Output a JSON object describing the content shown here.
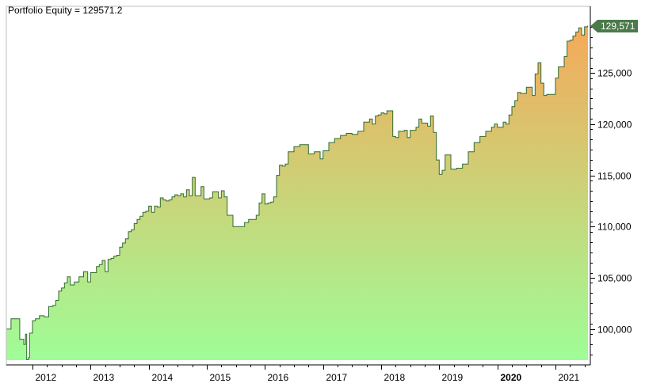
{
  "chart_data": {
    "type": "area",
    "title": "Portfolio Equity = 129571.2",
    "xlabel": "",
    "ylabel": "",
    "ylim": [
      96500,
      131500
    ],
    "xlim": [
      2011.55,
      2021.6
    ],
    "last_value_label": "129,571",
    "last_value": 129571.2,
    "colors": {
      "fill_bottom": "#9ffd97",
      "fill_top": "#f5a95a",
      "line": "#2f6b2f",
      "value_tag": "#4b7a4b",
      "axis": "#000000"
    },
    "x_ticks": [
      {
        "x": 2012,
        "label": "2012",
        "bold": false
      },
      {
        "x": 2013,
        "label": "2013",
        "bold": false
      },
      {
        "x": 2014,
        "label": "2014",
        "bold": false
      },
      {
        "x": 2015,
        "label": "2015",
        "bold": false
      },
      {
        "x": 2016,
        "label": "2016",
        "bold": false
      },
      {
        "x": 2017,
        "label": "2017",
        "bold": false
      },
      {
        "x": 2018,
        "label": "2018",
        "bold": false
      },
      {
        "x": 2019,
        "label": "2019",
        "bold": false
      },
      {
        "x": 2020,
        "label": "2020",
        "bold": true
      },
      {
        "x": 2021,
        "label": "2021",
        "bold": false
      }
    ],
    "y_ticks": [
      {
        "y": 100000,
        "label": "100,000"
      },
      {
        "y": 105000,
        "label": "105,000"
      },
      {
        "y": 110000,
        "label": "110,000"
      },
      {
        "y": 115000,
        "label": "115,000"
      },
      {
        "y": 120000,
        "label": "120,000"
      },
      {
        "y": 125000,
        "label": "125,000"
      }
    ],
    "series": [
      {
        "x": [
          2011.55,
          2011.62,
          2011.63,
          2011.75,
          2011.78,
          2011.82,
          2011.85,
          2011.88,
          2011.9,
          2011.93,
          2011.95,
          2012.0,
          2012.05,
          2012.12,
          2012.2,
          2012.28,
          2012.35,
          2012.4,
          2012.45,
          2012.5,
          2012.55,
          2012.6,
          2012.65,
          2012.72,
          2012.8,
          2012.88,
          2012.95,
          2013.0,
          2013.05,
          2013.1,
          2013.15,
          2013.2,
          2013.25,
          2013.3,
          2013.35,
          2013.4,
          2013.45,
          2013.5,
          2013.55,
          2013.6,
          2013.65,
          2013.7,
          2013.75,
          2013.8,
          2013.85,
          2013.9,
          2013.95,
          2014.0,
          2014.05,
          2014.1,
          2014.15,
          2014.2,
          2014.25,
          2014.3,
          2014.35,
          2014.4,
          2014.45,
          2014.5,
          2014.55,
          2014.6,
          2014.65,
          2014.7,
          2014.75,
          2014.8,
          2014.85,
          2014.9,
          2014.95,
          2015.0,
          2015.05,
          2015.1,
          2015.15,
          2015.2,
          2015.25,
          2015.3,
          2015.35,
          2015.45,
          2015.55,
          2015.65,
          2015.72,
          2015.8,
          2015.85,
          2015.9,
          2015.95,
          2016.0,
          2016.05,
          2016.1,
          2016.15,
          2016.2,
          2016.25,
          2016.3,
          2016.35,
          2016.4,
          2016.5,
          2016.6,
          2016.75,
          2016.85,
          2016.95,
          2017.0,
          2017.1,
          2017.2,
          2017.3,
          2017.4,
          2017.5,
          2017.6,
          2017.7,
          2017.8,
          2017.85,
          2017.9,
          2017.95,
          2018.0,
          2018.05,
          2018.1,
          2018.2,
          2018.25,
          2018.3,
          2018.4,
          2018.45,
          2018.5,
          2018.6,
          2018.65,
          2018.7,
          2018.8,
          2018.85,
          2018.9,
          2018.95,
          2019.0,
          2019.05,
          2019.1,
          2019.2,
          2019.3,
          2019.4,
          2019.5,
          2019.6,
          2019.7,
          2019.8,
          2019.9,
          2019.95,
          2020.0,
          2020.05,
          2020.1,
          2020.15,
          2020.2,
          2020.25,
          2020.3,
          2020.35,
          2020.4,
          2020.5,
          2020.6,
          2020.65,
          2020.7,
          2020.75,
          2020.8,
          2020.85,
          2020.9,
          2020.95,
          2021.0,
          2021.05,
          2021.1,
          2021.15,
          2021.2,
          2021.25,
          2021.3,
          2021.35,
          2021.4,
          2021.45,
          2021.5,
          2021.55
        ],
        "y": [
          100000,
          100000,
          101000,
          101000,
          99000,
          99000,
          98500,
          99500,
          97000,
          97200,
          99600,
          100800,
          101000,
          101300,
          101200,
          102200,
          102300,
          102800,
          103700,
          104000,
          104500,
          105100,
          104300,
          104600,
          105100,
          105600,
          104600,
          105500,
          105500,
          106100,
          106300,
          106700,
          105600,
          106800,
          106900,
          107100,
          107200,
          108000,
          108400,
          108800,
          109500,
          109700,
          110300,
          110700,
          111000,
          111400,
          111500,
          112000,
          111400,
          112000,
          111900,
          112800,
          112600,
          112500,
          112600,
          112900,
          113100,
          113000,
          113200,
          112900,
          113600,
          113000,
          114800,
          113000,
          113000,
          113900,
          112700,
          112700,
          112800,
          113400,
          113400,
          112800,
          113500,
          112900,
          111100,
          110000,
          110000,
          110400,
          110700,
          110700,
          111100,
          112300,
          113200,
          112200,
          112300,
          112400,
          112900,
          115000,
          116000,
          115900,
          116100,
          117300,
          117800,
          118000,
          117100,
          117300,
          116600,
          117400,
          118200,
          118600,
          118900,
          119100,
          119000,
          119300,
          120200,
          120500,
          120000,
          120800,
          120900,
          121100,
          121000,
          121300,
          118800,
          118700,
          119300,
          119400,
          118700,
          119400,
          119700,
          120500,
          120100,
          119800,
          120800,
          119200,
          116500,
          115100,
          115500,
          117000,
          115600,
          115700,
          116100,
          117300,
          118200,
          118800,
          119300,
          119700,
          120000,
          119700,
          119700,
          120200,
          120000,
          120900,
          121700,
          122300,
          123100,
          123000,
          123600,
          122800,
          124900,
          126000,
          124000,
          122800,
          122900,
          122900,
          122900,
          124500,
          125600,
          125600,
          126600,
          128100,
          128200,
          128600,
          129000,
          129400,
          128700,
          129500,
          129570
        ]
      }
    ]
  }
}
